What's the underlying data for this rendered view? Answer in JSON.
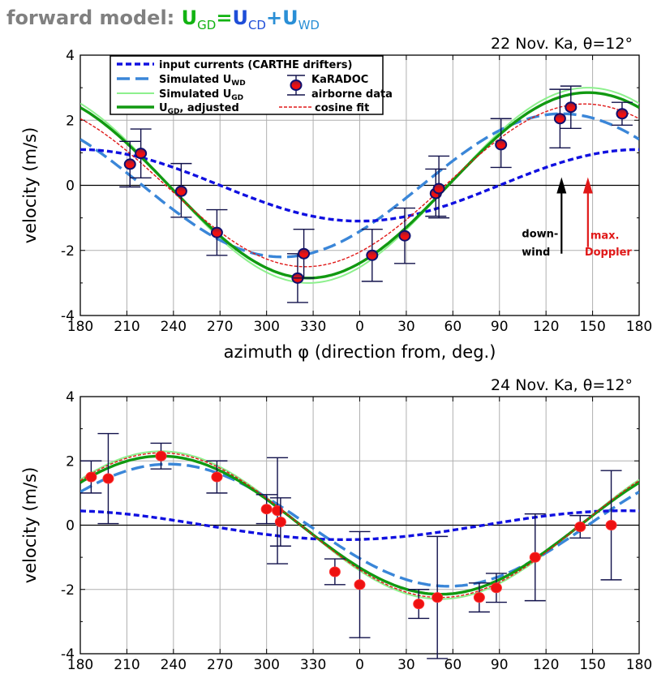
{
  "page_title": {
    "prefix": "forward model: ",
    "term1": "U",
    "term1_sub": "GD",
    "eq": "=",
    "term2": "U",
    "term2_sub": "CD",
    "plus": "+",
    "term3": "U",
    "term3_sub": "WD"
  },
  "colors": {
    "carthe": "#1010e0",
    "uwd": "#3a86d8",
    "ugd_sim": "#8df08d",
    "ugd_adj": "#119911",
    "cosine": "#e01818",
    "kara_edge": "#10106e",
    "kara_fill_top": "#8b1a3a",
    "kara_fill_bottom": "#ee1111",
    "errbar": "#10104a"
  },
  "chart_data": [
    {
      "type": "line",
      "panel_label": "22 Nov. Ka, θ=12°",
      "xlabel": "azimuth φ (direction from, deg.)",
      "ylabel": "velocity (m/s)",
      "xlim": [
        180,
        540
      ],
      "ylim": [
        -4,
        4
      ],
      "x_tick_labels": [
        "180",
        "210",
        "240",
        "270",
        "300",
        "330",
        "0",
        "30",
        "60",
        "90",
        "120",
        "150",
        "180"
      ],
      "y_tick_labels": [
        "-4",
        "-2",
        "0",
        "2",
        "4"
      ],
      "grid": true,
      "legend": {
        "placement": "top-left",
        "items": {
          "carthe": "input currents (CARTHE drifters)",
          "uwd_main": "Simulated U",
          "uwd_sub": "WD",
          "ugd_main": "Simulated U",
          "ugd_sub": "GD",
          "adj_main": "U",
          "adj_sub": "GD",
          "adj_rest": ", adjusted",
          "kara": "KaRADOC",
          "airborne": "airborne data",
          "cosine": "cosine fit"
        }
      },
      "series": {
        "carthe": {
          "amp": 1.1,
          "peak_az": 180,
          "offset": 0
        },
        "uwd": {
          "amp": 2.2,
          "peak_az": 130,
          "offset": 0
        },
        "ugd_sim": {
          "amp": 3.0,
          "peak_az": 147,
          "offset": 0
        },
        "ugd_adj": {
          "amp": 2.85,
          "peak_az": 147,
          "offset": 0
        },
        "cosine": {
          "amp": 2.5,
          "peak_az": 145,
          "offset": 0
        }
      },
      "karadoc": {
        "az": [
          212,
          219,
          245,
          268,
          320,
          324,
          368,
          389,
          409,
          411,
          451,
          489,
          496,
          529
        ],
        "vel": [
          0.65,
          0.98,
          -0.18,
          -1.45,
          -2.85,
          -2.1,
          -2.15,
          -1.55,
          -0.25,
          -0.1,
          1.25,
          2.05,
          2.4,
          2.2
        ],
        "err_lo": [
          0.7,
          0.75,
          0.8,
          0.7,
          0.75,
          0.75,
          0.8,
          0.85,
          0.7,
          0.9,
          0.7,
          0.9,
          0.65,
          0.35
        ],
        "err_hi": [
          0.7,
          0.75,
          0.85,
          0.7,
          0.75,
          0.75,
          0.8,
          0.85,
          0.75,
          1.0,
          0.8,
          0.9,
          0.65,
          0.35
        ]
      },
      "annotations": {
        "downwind_l1": "down-",
        "downwind_l2": "wind",
        "downwind_az": 130,
        "maxdop_l1": "max.",
        "maxdop_l2": "Doppler",
        "maxdop_az": 147
      }
    },
    {
      "type": "line",
      "panel_label": "24 Nov. Ka, θ=12°",
      "xlabel": "",
      "ylabel": "velocity (m/s)",
      "xlim": [
        180,
        540
      ],
      "ylim": [
        -4,
        4
      ],
      "x_tick_labels": [
        "180",
        "210",
        "240",
        "270",
        "300",
        "330",
        "0",
        "30",
        "60",
        "90",
        "120",
        "150",
        "180"
      ],
      "y_tick_labels": [
        "-4",
        "-2",
        "0",
        "2",
        "4"
      ],
      "grid": true,
      "series": {
        "carthe": {
          "amp": 0.45,
          "peak_az": 170,
          "offset": 0
        },
        "uwd": {
          "amp": 1.9,
          "peak_az": 237,
          "offset": 0
        },
        "ugd_sim": {
          "amp": 2.3,
          "peak_az": 232,
          "offset": 0
        },
        "ugd_adj": {
          "amp": 2.15,
          "peak_az": 232,
          "offset": 0
        },
        "cosine": {
          "amp": 2.25,
          "peak_az": 232,
          "offset": 0
        }
      },
      "karadoc": {
        "az": [
          187,
          198,
          232,
          268,
          300,
          307,
          309,
          344,
          360,
          398,
          410,
          437,
          448,
          473,
          502,
          522
        ],
        "vel": [
          1.5,
          1.45,
          2.15,
          1.5,
          0.5,
          0.45,
          0.1,
          -1.45,
          -1.85,
          -2.45,
          -2.25,
          -2.25,
          -1.95,
          -1.0,
          -0.05,
          0.0
        ],
        "err_lo": [
          0.5,
          1.4,
          0.4,
          0.5,
          0.45,
          1.65,
          0.75,
          0.4,
          1.65,
          0.45,
          1.9,
          0.45,
          0.45,
          1.35,
          0.35,
          1.7
        ],
        "err_hi": [
          0.5,
          1.4,
          0.4,
          0.5,
          0.45,
          1.65,
          0.75,
          0.4,
          1.65,
          0.45,
          1.9,
          0.45,
          0.45,
          1.35,
          0.35,
          1.7
        ]
      }
    }
  ]
}
